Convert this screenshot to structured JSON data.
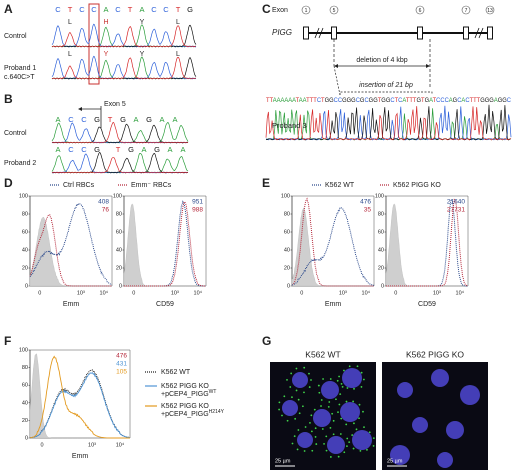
{
  "panel_a": {
    "label": "A",
    "bases": [
      "C",
      "T",
      "C",
      "C",
      "A",
      "C",
      "T",
      "A",
      "C",
      "C",
      "T",
      "G"
    ],
    "rows": [
      {
        "name": "Control",
        "protein": [
          "L",
          "H",
          "Y",
          "L"
        ]
      },
      {
        "name": "Proband 1",
        "variant": "c.640C>T",
        "protein": [
          "L",
          "Y",
          "Y",
          "L"
        ]
      }
    ]
  },
  "panel_b": {
    "label": "B",
    "exon": "Exon 5",
    "rows": [
      {
        "name": "Control",
        "bases": [
          "A",
          "C",
          "C",
          "G",
          "T",
          "G",
          "A",
          "G",
          "A",
          "A"
        ]
      },
      {
        "name": "Proband 2",
        "bases": [
          "A",
          "C",
          "C",
          "G",
          "T",
          "G",
          "A",
          "G",
          "A",
          "A"
        ]
      }
    ]
  },
  "panel_c": {
    "label": "C",
    "exon_label": "Exon",
    "exons": [
      "1",
      "5",
      "6",
      "7",
      "13"
    ],
    "gene": "PIGG",
    "deletion": "deletion of 4 kbp",
    "insertion": "insertion of 21 bp",
    "sequence": "TTAAAAAATAATTTCTGGCCGGGCGCGGTGGCTCATTTGTGATCCCAGCACTTTGGGAGGC",
    "sample": "Proband 3"
  },
  "panel_d": {
    "label": "D",
    "legend": [
      "Ctrl RBCs",
      "Emm⁻ RBCs"
    ],
    "yticks": [
      0,
      20,
      40,
      60,
      80,
      100
    ],
    "xticks": [
      "0",
      "10³",
      "10⁴"
    ],
    "plots": [
      {
        "xlabel": "Emm",
        "stats": [
          408,
          76
        ]
      },
      {
        "xlabel": "CD59",
        "stats": [
          951,
          988
        ]
      }
    ]
  },
  "panel_e": {
    "label": "E",
    "legend": [
      "K562 WT",
      "K562 PIGG KO"
    ],
    "yticks": [
      0,
      20,
      40,
      60,
      80,
      100
    ],
    "xticks": [
      "0",
      "10³",
      "10⁴"
    ],
    "plots": [
      {
        "xlabel": "Emm",
        "stats": [
          476,
          35
        ]
      },
      {
        "xlabel": "CD59",
        "stats": [
          21640,
          27731
        ]
      }
    ]
  },
  "panel_f": {
    "label": "F",
    "stats": [
      476,
      431,
      105
    ],
    "yticks": [
      0,
      20,
      40,
      60,
      80,
      100
    ],
    "xticks": [
      "0",
      "10³",
      "10⁴"
    ],
    "xlabel": "Emm",
    "legend": [
      {
        "line1": "K562 WT"
      },
      {
        "line1": "K562 PIGG KO",
        "line2": "+pCEP4_PIGG",
        "sup": "WT"
      },
      {
        "line1": "K562 PIGG KO",
        "line2": "+pCEP4_PIGG",
        "sup": "H214Y"
      }
    ]
  },
  "panel_g": {
    "label": "G",
    "titles": [
      "K562 WT",
      "K562 PIGG KO"
    ],
    "scale_bar": "25 µm"
  }
}
